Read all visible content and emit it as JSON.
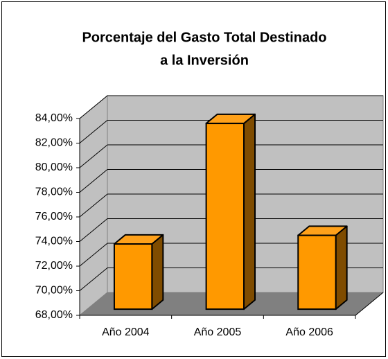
{
  "chart_data": {
    "type": "bar3d",
    "title": [
      "Porcentaje del Gasto Total Destinado",
      "a la Inversión"
    ],
    "categories": [
      "Año 2004",
      "Año 2005",
      "Año 2006"
    ],
    "values": [
      73.3,
      83.1,
      74.0
    ],
    "color": "#FF9900",
    "ylim": [
      68,
      84
    ],
    "yticks": [
      {
        "value": 68,
        "label": "68,00%"
      },
      {
        "value": 70,
        "label": "70,00%"
      },
      {
        "value": 72,
        "label": "72,00%"
      },
      {
        "value": 74,
        "label": "74,00%"
      },
      {
        "value": 76,
        "label": "76,00%"
      },
      {
        "value": 78,
        "label": "78,00%"
      },
      {
        "value": 80,
        "label": "80,00%"
      },
      {
        "value": 82,
        "label": "82,00%"
      },
      {
        "value": 84,
        "label": "84,00%"
      }
    ],
    "grid": true
  }
}
